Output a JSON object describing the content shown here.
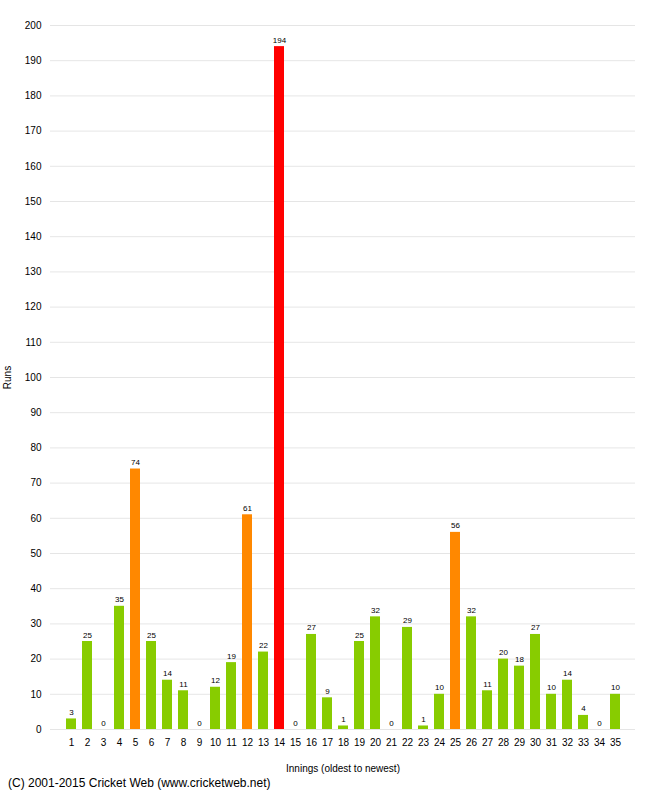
{
  "chart_data": {
    "type": "bar",
    "categories": [
      "1",
      "2",
      "3",
      "4",
      "5",
      "6",
      "7",
      "8",
      "9",
      "10",
      "11",
      "12",
      "13",
      "14",
      "15",
      "16",
      "17",
      "18",
      "19",
      "20",
      "21",
      "22",
      "23",
      "24",
      "25",
      "26",
      "27",
      "28",
      "29",
      "30",
      "31",
      "32",
      "33",
      "34",
      "35"
    ],
    "values": [
      3,
      25,
      0,
      35,
      74,
      25,
      14,
      11,
      0,
      12,
      19,
      61,
      22,
      194,
      0,
      27,
      9,
      1,
      25,
      32,
      0,
      29,
      1,
      10,
      56,
      32,
      11,
      20,
      18,
      27,
      10,
      14,
      4,
      0,
      10
    ],
    "colors": [
      "#88cc00",
      "#88cc00",
      "#88cc00",
      "#88cc00",
      "#ff8800",
      "#88cc00",
      "#88cc00",
      "#88cc00",
      "#88cc00",
      "#88cc00",
      "#88cc00",
      "#ff8800",
      "#88cc00",
      "#ff0000",
      "#88cc00",
      "#88cc00",
      "#88cc00",
      "#88cc00",
      "#88cc00",
      "#88cc00",
      "#88cc00",
      "#88cc00",
      "#88cc00",
      "#88cc00",
      "#ff8800",
      "#88cc00",
      "#88cc00",
      "#88cc00",
      "#88cc00",
      "#88cc00",
      "#88cc00",
      "#88cc00",
      "#88cc00",
      "#88cc00",
      "#88cc00"
    ],
    "xlabel": "Innings (oldest to newest)",
    "ylabel": "Runs",
    "ylim": [
      0,
      200
    ],
    "yticks": [
      0,
      10,
      20,
      30,
      40,
      50,
      60,
      70,
      80,
      90,
      100,
      110,
      120,
      130,
      140,
      150,
      160,
      170,
      180,
      190,
      200
    ],
    "grid": true,
    "data_labels": true,
    "caption": "(C) 2001-2015 Cricket Web (www.cricketweb.net)"
  }
}
